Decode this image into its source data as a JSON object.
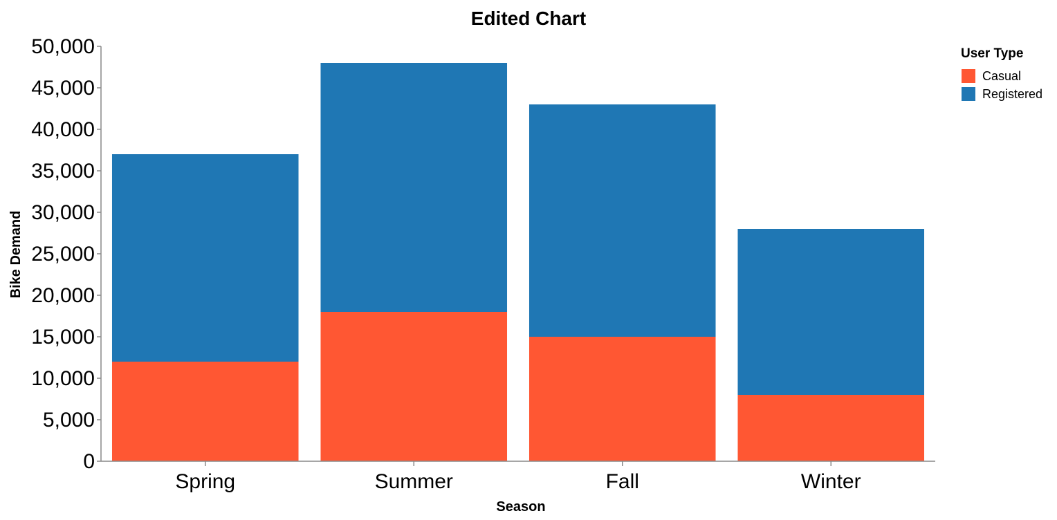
{
  "chart_data": {
    "type": "bar",
    "stacked": true,
    "title": "Edited Chart",
    "xlabel": "Season",
    "ylabel": "Bike Demand",
    "categories": [
      "Spring",
      "Summer",
      "Fall",
      "Winter"
    ],
    "series": [
      {
        "name": "Casual",
        "color": "#ff5733",
        "values": [
          12000,
          18000,
          15000,
          8000
        ]
      },
      {
        "name": "Registered",
        "color": "#1f77b4",
        "values": [
          25000,
          30000,
          28000,
          20000
        ]
      }
    ],
    "ylim": [
      0,
      50000
    ],
    "yticks": [
      0,
      5000,
      10000,
      15000,
      20000,
      25000,
      30000,
      35000,
      40000,
      45000,
      50000
    ],
    "ytick_labels": [
      "0",
      "5,000",
      "10,000",
      "15,000",
      "20,000",
      "25,000",
      "30,000",
      "35,000",
      "40,000",
      "45,000",
      "50,000"
    ],
    "grid": false,
    "legend": {
      "title": "User Type",
      "placement": "right"
    }
  }
}
